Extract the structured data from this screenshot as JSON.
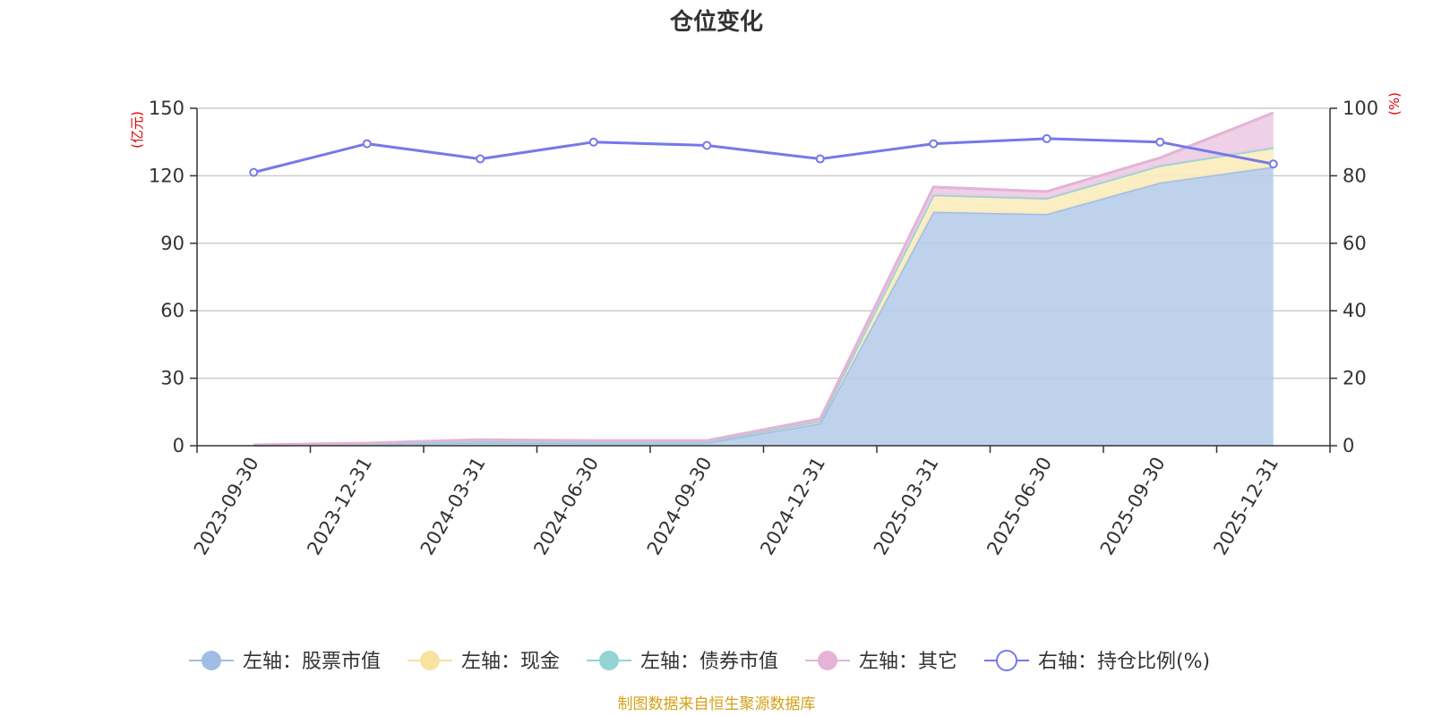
{
  "chart_data": {
    "type": "area",
    "title": "仓位变化",
    "source": "制图数据来自恒生聚源数据库",
    "left_axis": {
      "unit": "(亿元)",
      "ticks": [
        "0",
        "30",
        "60",
        "90",
        "120",
        "150"
      ],
      "range": [
        0,
        150
      ]
    },
    "right_axis": {
      "unit": "(%)",
      "ticks": [
        "0",
        "20",
        "40",
        "60",
        "80",
        "100"
      ],
      "range": [
        0,
        100
      ]
    },
    "categories": [
      "2023-09-30",
      "2023-12-31",
      "2024-03-31",
      "2024-06-30",
      "2024-09-30",
      "2024-12-31",
      "2025-03-31",
      "2025-06-30",
      "2025-09-30",
      "2025-12-31"
    ],
    "series": [
      {
        "name": "左轴：股票市值",
        "axis": "left",
        "stack": true,
        "color": "#a1bde6",
        "area_color": "#b8cdea",
        "values": [
          0.2,
          0.7,
          1.5,
          1.3,
          1.3,
          10.0,
          104.0,
          103.0,
          117.0,
          124.0
        ]
      },
      {
        "name": "左轴：现金",
        "axis": "left",
        "stack": true,
        "color": "#f7e3a0",
        "area_color": "#fbecbb",
        "values": [
          0.1,
          0.2,
          0.5,
          0.4,
          0.4,
          1.0,
          7.5,
          7.0,
          7.5,
          8.5
        ]
      },
      {
        "name": "左轴：债券市值",
        "axis": "left",
        "stack": true,
        "color": "#92d3d6",
        "area_color": "#a6dcdf",
        "values": [
          0.0,
          0.0,
          0.0,
          0.0,
          0.0,
          0.0,
          0.0,
          0.0,
          0.0,
          0.0
        ]
      },
      {
        "name": "左轴：其它",
        "axis": "left",
        "stack": true,
        "color": "#e4b3d6",
        "area_color": "#eccbe4",
        "values": [
          0.1,
          0.3,
          0.7,
          0.6,
          0.6,
          1.0,
          3.5,
          3.0,
          3.5,
          15.5
        ]
      },
      {
        "name": "右轴：持仓比例(%)",
        "axis": "right",
        "stack": false,
        "color": "#7579e8",
        "values": [
          81.0,
          89.5,
          85.0,
          90.0,
          89.0,
          85.0,
          89.5,
          91.0,
          90.0,
          83.5
        ]
      }
    ],
    "grid": true,
    "legend_position": "bottom"
  }
}
